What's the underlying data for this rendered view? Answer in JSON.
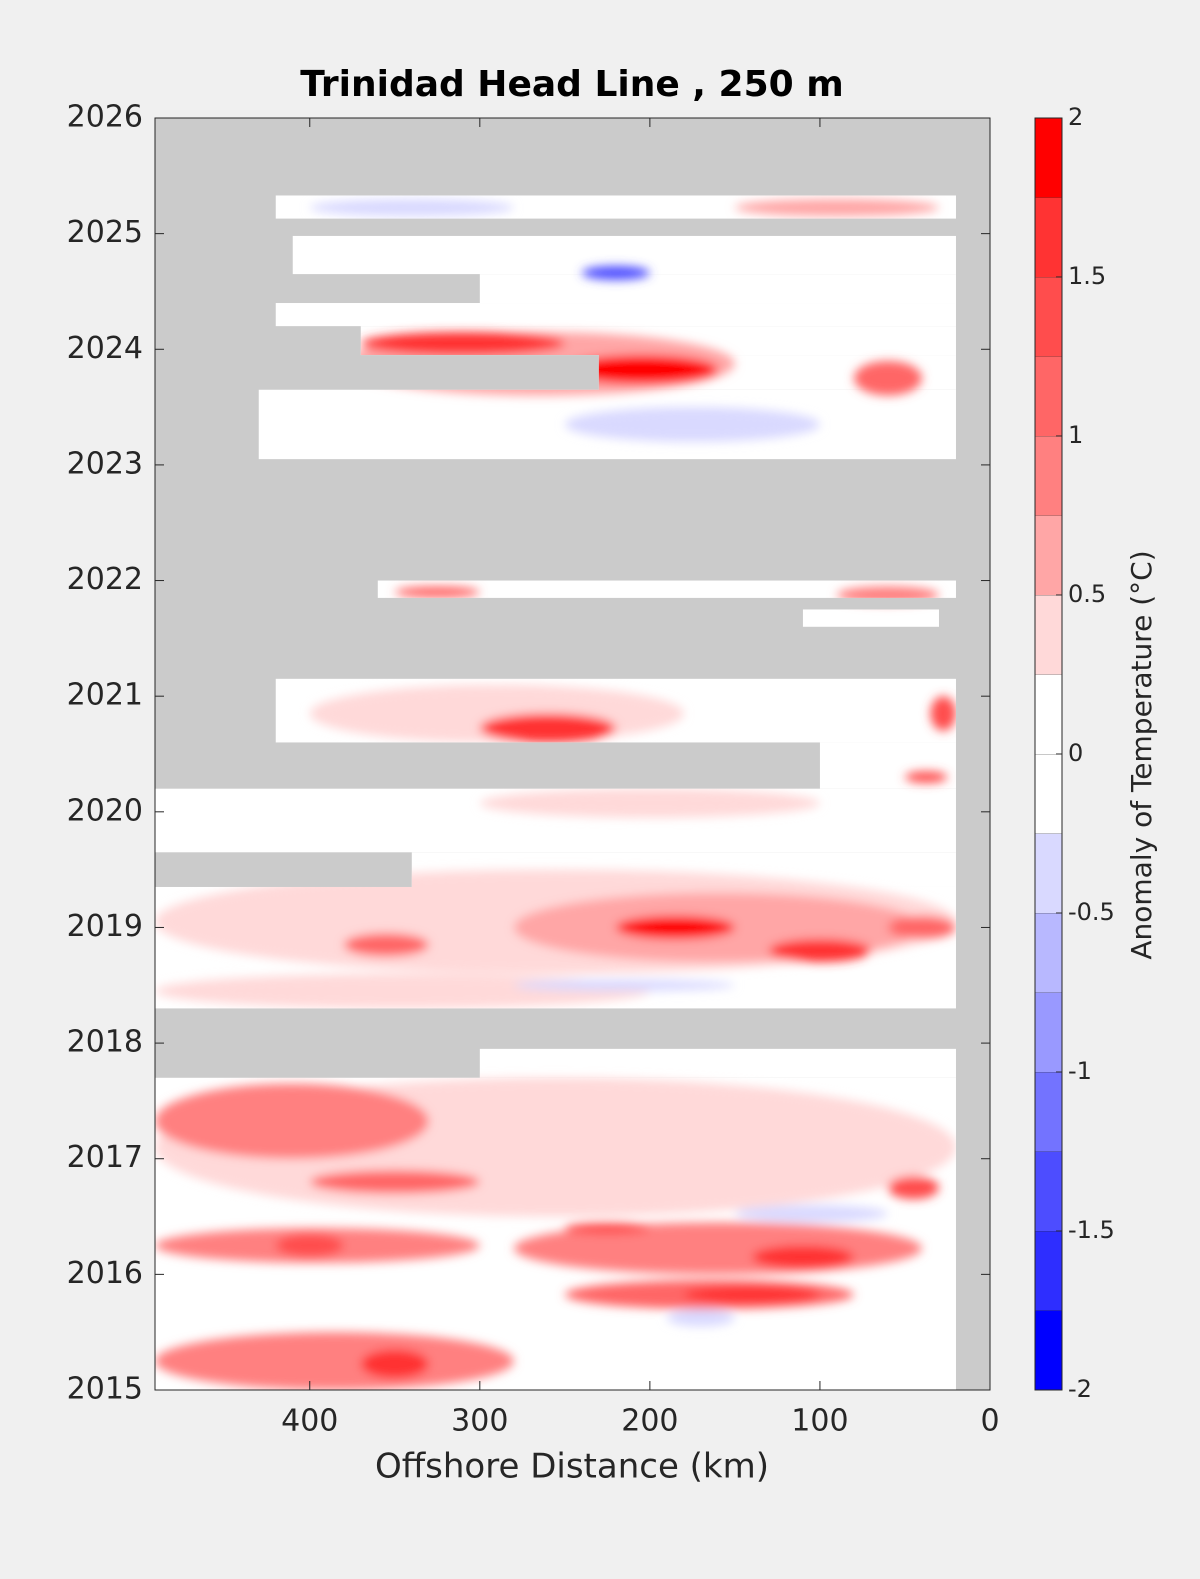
{
  "chart_data": {
    "type": "contour",
    "title": "Trinidad Head Line , 250 m",
    "xlabel": "Offshore Distance (km)",
    "xlim": [
      491,
      0
    ],
    "xticks": [
      400,
      300,
      200,
      100,
      0
    ],
    "ylim": [
      2015,
      2026
    ],
    "yticks": [
      2015,
      2016,
      2017,
      2018,
      2019,
      2020,
      2021,
      2022,
      2023,
      2024,
      2025,
      2026
    ],
    "missing_color": "#cbcbcb",
    "coverage": [
      {
        "t": [
          2025.13,
          2025.33
        ],
        "x": [
          420,
          20
        ]
      },
      {
        "t": [
          2024.65,
          2024.98
        ],
        "x": [
          410,
          20
        ]
      },
      {
        "t": [
          2024.4,
          2024.65
        ],
        "x": [
          300,
          20
        ]
      },
      {
        "t": [
          2024.2,
          2024.4
        ],
        "x": [
          420,
          20
        ]
      },
      {
        "t": [
          2023.95,
          2024.2
        ],
        "x": [
          370,
          20
        ]
      },
      {
        "t": [
          2023.65,
          2023.95
        ],
        "x": [
          230,
          20
        ]
      },
      {
        "t": [
          2023.05,
          2023.65
        ],
        "x": [
          430,
          20
        ]
      },
      {
        "t": [
          2021.85,
          2022.0
        ],
        "x": [
          360,
          20
        ]
      },
      {
        "t": [
          2021.6,
          2021.75
        ],
        "x": [
          110,
          30
        ]
      },
      {
        "t": [
          2020.6,
          2021.15
        ],
        "x": [
          420,
          20
        ]
      },
      {
        "t": [
          2020.2,
          2020.6
        ],
        "x": [
          100,
          20
        ]
      },
      {
        "t": [
          2019.65,
          2020.2
        ],
        "x": [
          491,
          20
        ]
      },
      {
        "t": [
          2019.35,
          2019.65
        ],
        "x": [
          340,
          20
        ]
      },
      {
        "t": [
          2018.3,
          2019.35
        ],
        "x": [
          491,
          20
        ]
      },
      {
        "t": [
          2017.7,
          2017.95
        ],
        "x": [
          300,
          20
        ]
      },
      {
        "t": [
          2015.0,
          2017.7
        ],
        "x": [
          491,
          20
        ]
      }
    ],
    "field": [
      {
        "x": [
          380,
          150
        ],
        "t": [
          2023.6,
          2024.15
        ],
        "value": 0.6
      },
      {
        "x": [
          370,
          250
        ],
        "t": [
          2023.95,
          2024.15
        ],
        "value": 1.6
      },
      {
        "x": [
          250,
          160
        ],
        "t": [
          2023.7,
          2023.95
        ],
        "value": 1.8
      },
      {
        "x": [
          240,
          200
        ],
        "t": [
          2024.6,
          2024.72
        ],
        "value": -1.3
      },
      {
        "x": [
          400,
          280
        ],
        "t": [
          2025.15,
          2025.3
        ],
        "value": -0.4
      },
      {
        "x": [
          150,
          30
        ],
        "t": [
          2025.15,
          2025.3
        ],
        "value": 0.6
      },
      {
        "x": [
          250,
          100
        ],
        "t": [
          2023.2,
          2023.5
        ],
        "value": -0.4
      },
      {
        "x": [
          80,
          40
        ],
        "t": [
          2023.6,
          2023.9
        ],
        "value": 1.1
      },
      {
        "x": [
          350,
          300
        ],
        "t": [
          2021.85,
          2021.95
        ],
        "value": 1.1
      },
      {
        "x": [
          90,
          30
        ],
        "t": [
          2021.8,
          2021.95
        ],
        "value": 0.8
      },
      {
        "x": [
          400,
          180
        ],
        "t": [
          2020.6,
          2021.1
        ],
        "value": 0.4
      },
      {
        "x": [
          300,
          220
        ],
        "t": [
          2020.6,
          2020.85
        ],
        "value": 1.6
      },
      {
        "x": [
          35,
          20
        ],
        "t": [
          2020.7,
          2021.0
        ],
        "value": 1.3
      },
      {
        "x": [
          50,
          25
        ],
        "t": [
          2020.25,
          2020.35
        ],
        "value": 1.3
      },
      {
        "x": [
          300,
          100
        ],
        "t": [
          2019.95,
          2020.2
        ],
        "value": 0.4
      },
      {
        "x": [
          491,
          20
        ],
        "t": [
          2018.6,
          2019.5
        ],
        "value": 0.4
      },
      {
        "x": [
          280,
          40
        ],
        "t": [
          2018.7,
          2019.3
        ],
        "value": 0.6
      },
      {
        "x": [
          220,
          150
        ],
        "t": [
          2018.9,
          2019.1
        ],
        "value": 1.8
      },
      {
        "x": [
          130,
          70
        ],
        "t": [
          2018.7,
          2018.9
        ],
        "value": 1.6
      },
      {
        "x": [
          380,
          330
        ],
        "t": [
          2018.75,
          2018.95
        ],
        "value": 1.1
      },
      {
        "x": [
          60,
          20
        ],
        "t": [
          2018.9,
          2019.1
        ],
        "value": 1.1
      },
      {
        "x": [
          491,
          200
        ],
        "t": [
          2018.3,
          2018.6
        ],
        "value": 0.4
      },
      {
        "x": [
          280,
          150
        ],
        "t": [
          2018.45,
          2018.55
        ],
        "value": -0.4
      },
      {
        "x": [
          491,
          20
        ],
        "t": [
          2016.5,
          2017.7
        ],
        "value": 0.4
      },
      {
        "x": [
          491,
          330
        ],
        "t": [
          2017.0,
          2017.65
        ],
        "value": 0.8
      },
      {
        "x": [
          400,
          300
        ],
        "t": [
          2016.7,
          2016.9
        ],
        "value": 1.1
      },
      {
        "x": [
          60,
          30
        ],
        "t": [
          2016.65,
          2016.85
        ],
        "value": 1.3
      },
      {
        "x": [
          150,
          60
        ],
        "t": [
          2016.45,
          2016.6
        ],
        "value": -0.4
      },
      {
        "x": [
          491,
          300
        ],
        "t": [
          2016.1,
          2016.4
        ],
        "value": 0.8
      },
      {
        "x": [
          420,
          380
        ],
        "t": [
          2016.15,
          2016.35
        ],
        "value": 1.3
      },
      {
        "x": [
          280,
          40
        ],
        "t": [
          2016.0,
          2016.45
        ],
        "value": 0.8
      },
      {
        "x": [
          250,
          200
        ],
        "t": [
          2016.35,
          2016.45
        ],
        "value": 1.3
      },
      {
        "x": [
          140,
          80
        ],
        "t": [
          2016.05,
          2016.25
        ],
        "value": 1.6
      },
      {
        "x": [
          250,
          80
        ],
        "t": [
          2015.7,
          2015.95
        ],
        "value": 1.1
      },
      {
        "x": [
          180,
          100
        ],
        "t": [
          2015.75,
          2015.9
        ],
        "value": 1.6
      },
      {
        "x": [
          190,
          150
        ],
        "t": [
          2015.55,
          2015.7
        ],
        "value": -0.4
      },
      {
        "x": [
          491,
          280
        ],
        "t": [
          2015.0,
          2015.5
        ],
        "value": 0.8
      },
      {
        "x": [
          370,
          330
        ],
        "t": [
          2015.1,
          2015.35
        ],
        "value": 1.6
      }
    ],
    "colorbar": {
      "label": "Anomaly of Temperature (°C)",
      "levels": [
        -2,
        -1.75,
        -1.5,
        -1.25,
        -1,
        -0.75,
        -0.5,
        -0.25,
        0,
        0.25,
        0.5,
        0.75,
        1,
        1.25,
        1.5,
        1.75,
        2
      ],
      "colors": [
        "#0000ff",
        "#2e2eff",
        "#4d4dff",
        "#7373ff",
        "#9999ff",
        "#b8b8ff",
        "#d9d9ff",
        "#ffffff",
        "#ffffff",
        "#ffd9d9",
        "#ffa6a6",
        "#ff8080",
        "#ff6666",
        "#ff4d4d",
        "#ff3333",
        "#ff0000"
      ],
      "ticks": [
        -2,
        -1.5,
        -1,
        -0.5,
        0,
        0.5,
        1,
        1.5,
        2
      ]
    }
  }
}
